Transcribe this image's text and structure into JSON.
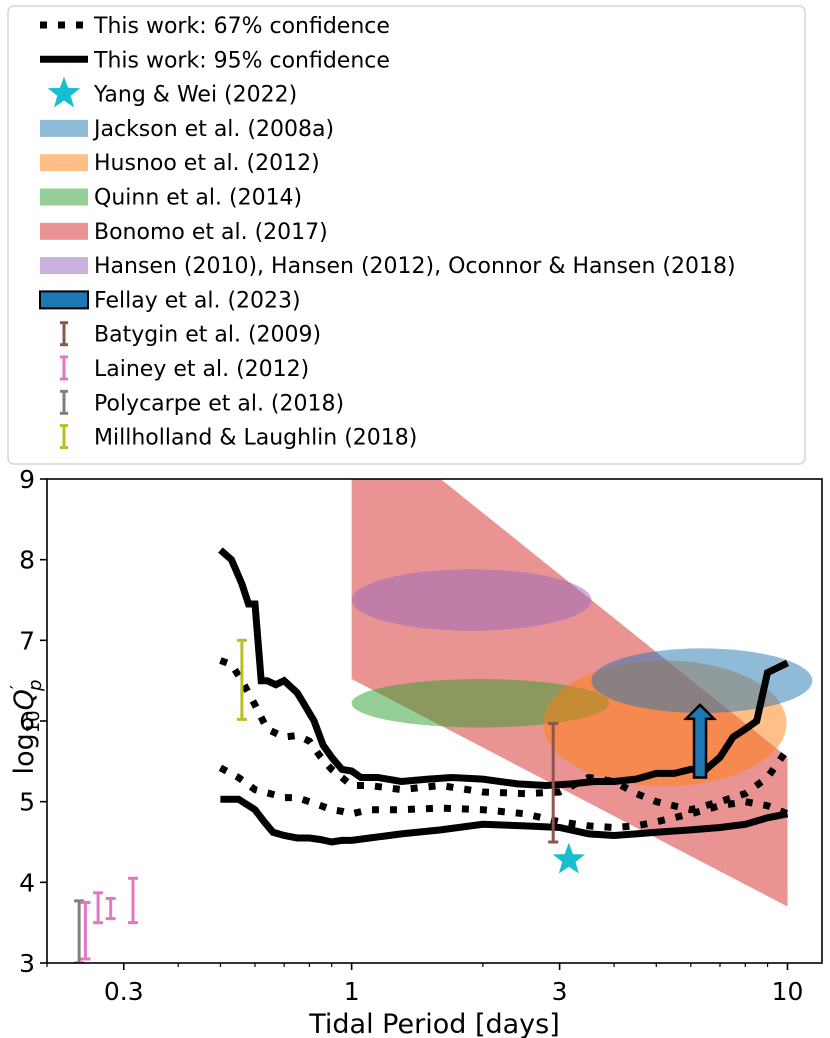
{
  "chart_data": {
    "type": "mixed",
    "title": "",
    "xlabel": "Tidal Period [days]",
    "ylabel_base": "log",
    "ylabel_sub": "10",
    "ylabel_var": "Q",
    "ylabel_prime": "′",
    "ylabel_subscript": "p",
    "x_scale": "log",
    "xlim": [
      0.2,
      12
    ],
    "ylim": [
      3,
      9
    ],
    "x_ticks": [
      0.3,
      1,
      3,
      10
    ],
    "x_tick_labels": [
      "0.3",
      "1",
      "3",
      "10"
    ],
    "y_ticks": [
      3,
      4,
      5,
      6,
      7,
      8,
      9
    ],
    "y_tick_labels": [
      "3",
      "4",
      "5",
      "6",
      "7",
      "8",
      "9"
    ],
    "legend_position": "top (outside axes)",
    "legend": [
      {
        "label": "This work: 67% confidence",
        "style": "dotted-line",
        "color": "#000000"
      },
      {
        "label": "This work: 95% confidence",
        "style": "solid-line",
        "color": "#000000"
      },
      {
        "label": "Yang & Wei (2022)",
        "style": "star",
        "color": "#17becf"
      },
      {
        "label": "Jackson et al. (2008a)",
        "style": "patch",
        "color": "#1f77b4"
      },
      {
        "label": "Husnoo et al. (2012)",
        "style": "patch",
        "color": "#ff7f0e"
      },
      {
        "label": "Quinn et al. (2014)",
        "style": "patch",
        "color": "#2ca02c"
      },
      {
        "label": "Bonomo et al. (2017)",
        "style": "patch",
        "color": "#d62728"
      },
      {
        "label": "Hansen (2010), Hansen (2012), Oconnor & Hansen (2018)",
        "style": "patch",
        "color": "#9467bd"
      },
      {
        "label": "Fellay et al. (2023)",
        "style": "patch-edged",
        "color": "#1f77b4"
      },
      {
        "label": "Batygin et al. (2009)",
        "style": "errorbar",
        "color": "#8c564b"
      },
      {
        "label": "Lainey et al. (2012)",
        "style": "errorbar",
        "color": "#e377c2"
      },
      {
        "label": "Polycarpe et al. (2018)",
        "style": "errorbar",
        "color": "#7f7f7f"
      },
      {
        "label": "Millholland & Laughlin (2018)",
        "style": "errorbar",
        "color": "#bcbd22"
      }
    ],
    "series": [
      {
        "name": "This work: 95% confidence (upper)",
        "style": "solid",
        "x": [
          0.5,
          0.53,
          0.56,
          0.58,
          0.6,
          0.62,
          0.64,
          0.67,
          0.7,
          0.75,
          0.78,
          0.82,
          0.86,
          0.9,
          0.95,
          1.0,
          1.05,
          1.15,
          1.3,
          1.5,
          1.7,
          2.0,
          2.4,
          2.8,
          3.2,
          3.6,
          4.0,
          4.5,
          5.0,
          5.5,
          6.0,
          6.5,
          7.0,
          7.5,
          8.0,
          8.5,
          9.0,
          10.0
        ],
        "y": [
          8.12,
          8.0,
          7.7,
          7.45,
          7.45,
          6.5,
          6.5,
          6.45,
          6.5,
          6.35,
          6.2,
          6.0,
          5.7,
          5.55,
          5.4,
          5.38,
          5.3,
          5.3,
          5.25,
          5.28,
          5.3,
          5.28,
          5.22,
          5.2,
          5.22,
          5.25,
          5.25,
          5.28,
          5.35,
          5.35,
          5.4,
          5.4,
          5.55,
          5.8,
          5.9,
          6.0,
          6.6,
          6.72
        ]
      },
      {
        "name": "This work: 67% confidence (upper)",
        "style": "dotted",
        "x": [
          0.5,
          0.53,
          0.56,
          0.6,
          0.64,
          0.7,
          0.75,
          0.8,
          0.85,
          0.9,
          0.95,
          1.0,
          1.1,
          1.3,
          1.6,
          2.0,
          2.5,
          3.0,
          3.5,
          4.0,
          4.5,
          5.0,
          6.0,
          7.0,
          8.0,
          9.0,
          10.0
        ],
        "y": [
          6.75,
          6.7,
          6.5,
          6.2,
          5.9,
          5.8,
          5.82,
          5.75,
          5.55,
          5.4,
          5.3,
          5.2,
          5.2,
          5.15,
          5.2,
          5.12,
          5.1,
          5.12,
          5.3,
          5.25,
          5.1,
          5.0,
          4.9,
          5.0,
          5.1,
          5.3,
          5.65
        ]
      },
      {
        "name": "This work: 67% confidence (lower)",
        "style": "dotted",
        "x": [
          0.5,
          0.55,
          0.6,
          0.65,
          0.7,
          0.75,
          0.8,
          0.85,
          0.9,
          0.95,
          1.0,
          1.1,
          1.3,
          1.6,
          2.0,
          2.5,
          3.0,
          3.5,
          4.0,
          4.5,
          5.0,
          6.0,
          7.0,
          8.0,
          9.0,
          10.0
        ],
        "y": [
          5.42,
          5.3,
          5.15,
          5.1,
          5.05,
          5.05,
          5.0,
          4.95,
          4.9,
          4.88,
          4.85,
          4.9,
          4.9,
          4.92,
          4.9,
          4.85,
          4.75,
          4.7,
          4.68,
          4.7,
          4.75,
          4.85,
          4.95,
          5.0,
          4.95,
          4.85
        ]
      },
      {
        "name": "This work: 95% confidence (lower)",
        "style": "solid",
        "x": [
          0.5,
          0.55,
          0.6,
          0.63,
          0.66,
          0.7,
          0.75,
          0.8,
          0.85,
          0.9,
          0.95,
          1.0,
          1.1,
          1.3,
          1.6,
          2.0,
          2.5,
          3.0,
          3.5,
          4.0,
          4.5,
          5.0,
          6.0,
          7.0,
          8.0,
          9.0,
          10.0
        ],
        "y": [
          5.03,
          5.03,
          4.9,
          4.75,
          4.62,
          4.58,
          4.55,
          4.55,
          4.53,
          4.5,
          4.52,
          4.52,
          4.55,
          4.6,
          4.65,
          4.72,
          4.7,
          4.68,
          4.6,
          4.58,
          4.6,
          4.62,
          4.65,
          4.68,
          4.72,
          4.8,
          4.85
        ]
      }
    ],
    "regions": [
      {
        "name": "Bonomo et al. (2017)",
        "shape": "polygon",
        "color": "#d62728",
        "alpha": 0.5,
        "points": [
          [
            1.0,
            9.0
          ],
          [
            1.6,
            9.0
          ],
          [
            10.0,
            5.55
          ],
          [
            10.0,
            3.7
          ],
          [
            1.0,
            6.52
          ]
        ]
      },
      {
        "name": "Hansen (2010), Hansen (2012), Oconnor & Hansen (2018)",
        "shape": "ellipse",
        "color": "#9467bd",
        "alpha": 0.5,
        "center": [
          1.88,
          7.5
        ],
        "x_range": [
          1.0,
          3.55
        ],
        "y_halfwidth": 0.38
      },
      {
        "name": "Quinn et al. (2014)",
        "shape": "ellipse",
        "color": "#2ca02c",
        "alpha": 0.5,
        "center": [
          1.98,
          6.22
        ],
        "x_range": [
          1.0,
          3.9
        ],
        "y_halfwidth": 0.3
      },
      {
        "name": "Husnoo et al. (2012)",
        "shape": "ellipse",
        "color": "#ff7f0e",
        "alpha": 0.5,
        "center": [
          4.9,
          5.97
        ],
        "x_range": [
          2.75,
          9.95
        ],
        "y_halfwidth": 0.78
      },
      {
        "name": "Jackson et al. (2008a)",
        "shape": "ellipse",
        "color": "#1f77b4",
        "alpha": 0.5,
        "center": [
          5.8,
          6.5
        ],
        "x_range": [
          3.55,
          11.4
        ],
        "y_halfwidth": 0.4
      }
    ],
    "arrows": [
      {
        "name": "Fellay et al. (2023)",
        "x": 6.3,
        "y_from": 5.3,
        "y_to": 6.2,
        "color": "#1f77b4"
      }
    ],
    "points": [
      {
        "name": "Yang & Wei (2022)",
        "x": 3.15,
        "y": 4.28,
        "marker": "star",
        "color": "#17becf"
      }
    ],
    "errorbars": [
      {
        "name": "Batygin et al. (2009)",
        "x": 2.9,
        "y_low": 4.5,
        "y_high": 5.97,
        "color": "#8c564b"
      },
      {
        "name": "Millholland & Laughlin (2018)",
        "x": 0.56,
        "y_low": 6.02,
        "y_high": 7.0,
        "color": "#bcbd22"
      },
      {
        "name": "Polycarpe et al. (2018)",
        "x": 0.237,
        "y_low": 3.0,
        "y_high": 3.77,
        "color": "#7f7f7f"
      },
      {
        "name": "Lainey et al. (2012) a",
        "x": 0.245,
        "y_low": 3.05,
        "y_high": 3.75,
        "color": "#e377c2"
      },
      {
        "name": "Lainey et al. (2012) b",
        "x": 0.262,
        "y_low": 3.5,
        "y_high": 3.87,
        "color": "#e377c2"
      },
      {
        "name": "Lainey et al. (2012) c",
        "x": 0.28,
        "y_low": 3.55,
        "y_high": 3.8,
        "color": "#e377c2"
      },
      {
        "name": "Lainey et al. (2012) d",
        "x": 0.315,
        "y_low": 3.5,
        "y_high": 4.05,
        "color": "#e377c2"
      }
    ]
  }
}
